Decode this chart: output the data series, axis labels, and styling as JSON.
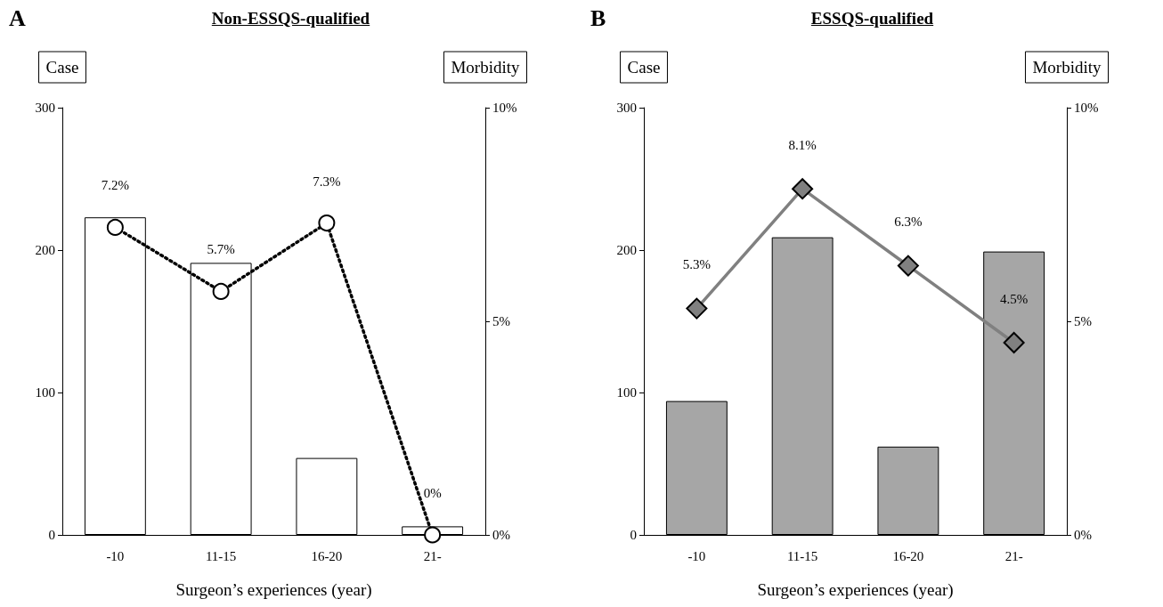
{
  "chart_data": [
    {
      "type": "bar",
      "title": "Non-ESSQS-qualified",
      "xlabel": "Surgeon’s experiences (year)",
      "ylabel": "Case",
      "y2label": "Morbidity",
      "annotations": [
        "A"
      ],
      "categories": [
        "-10",
        "11-15",
        "16-20",
        "21-"
      ],
      "series": [
        {
          "color": "#ffffff",
          "values": [
            223,
            191,
            54,
            6
          ]
        },
        {
          "type": "line",
          "axis": "y2",
          "color": "#000000",
          "marker": "circle",
          "line_style": "dotted",
          "values": [
            7.2,
            5.7,
            7.3,
            0
          ],
          "value_labels": [
            "7.2%",
            "5.7%",
            "7.3%",
            "0%"
          ]
        }
      ],
      "ylim": [
        0,
        300
      ],
      "yticks": [
        0,
        100,
        200,
        300
      ],
      "y2lim": [
        0,
        10
      ],
      "y2ticks": [
        {
          "value": 0,
          "label": "0%"
        },
        {
          "value": 5,
          "label": "5%"
        },
        {
          "value": 10,
          "label": "10%"
        }
      ],
      "grid": false
    },
    {
      "type": "bar",
      "title": "ESSQS-qualified",
      "xlabel": "Surgeon’s experiences (year)",
      "ylabel": "Case",
      "y2label": "Morbidity",
      "annotations": [
        "B"
      ],
      "categories": [
        "-10",
        "11-15",
        "16-20",
        "21-"
      ],
      "series": [
        {
          "color": "#a6a6a6",
          "values": [
            94,
            209,
            62,
            199
          ]
        },
        {
          "type": "line",
          "axis": "y2",
          "color": "#808080",
          "marker": "diamond",
          "line_style": "solid",
          "values": [
            5.3,
            8.1,
            6.3,
            4.5
          ],
          "value_labels": [
            "5.3%",
            "8.1%",
            "6.3%",
            "4.5%"
          ]
        }
      ],
      "ylim": [
        0,
        300
      ],
      "yticks": [
        0,
        100,
        200,
        300
      ],
      "y2lim": [
        0,
        10
      ],
      "y2ticks": [
        {
          "value": 0,
          "label": "0%"
        },
        {
          "value": 5,
          "label": "5%"
        },
        {
          "value": 10,
          "label": "10%"
        }
      ],
      "grid": false
    }
  ]
}
